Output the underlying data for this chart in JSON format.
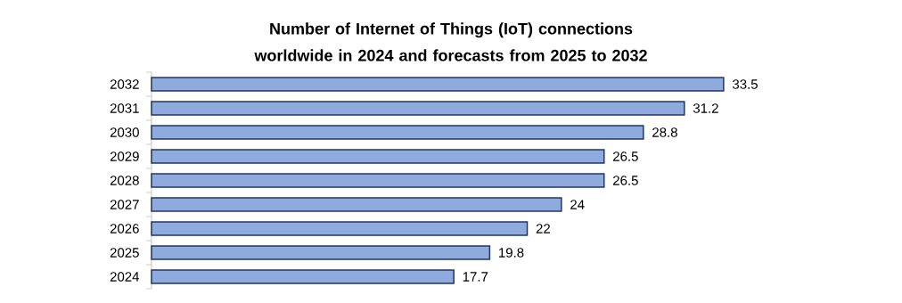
{
  "chart_data": {
    "type": "bar",
    "orientation": "horizontal",
    "title": "Number of Internet of Things (IoT) connections worldwide in 2024  and forecasts from 2025 to 2032",
    "categories": [
      "2032",
      "2031",
      "2030",
      "2029",
      "2028",
      "2027",
      "2026",
      "2025",
      "2024"
    ],
    "values": [
      33.5,
      31.2,
      28.8,
      26.5,
      26.5,
      24,
      22,
      19.8,
      17.7
    ],
    "color": "#8faadc",
    "tick_labels": "y",
    "data_labels": true
  }
}
